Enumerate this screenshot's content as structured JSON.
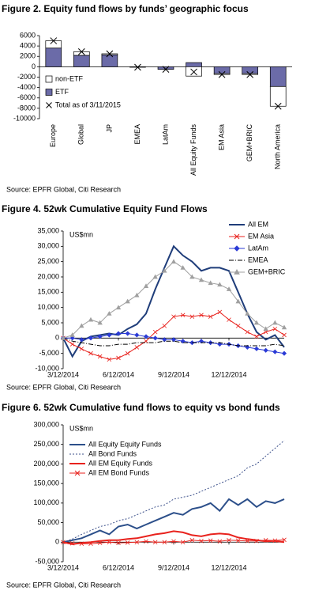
{
  "chart_data": [
    {
      "type": "bar",
      "title": "Figure 2. Equity fund flows by funds’ geographic focus",
      "source": "Source: EPFR Global, Citi Research",
      "categories": [
        "Europe",
        "Global",
        "JP",
        "EMEA",
        "LatAm",
        "All Equity Funds",
        "EM Asia",
        "GEM+BRIC",
        "North America"
      ],
      "series": [
        {
          "name": "non-ETF",
          "color": "#ffffff",
          "values": [
            1400,
            700,
            200,
            0,
            0,
            -1800,
            -200,
            -200,
            -3800
          ]
        },
        {
          "name": "ETF",
          "color": "#6b6ba8",
          "values": [
            3600,
            2200,
            2300,
            -100,
            -500,
            800,
            -1300,
            -1300,
            -3800
          ]
        },
        {
          "name": "Total as of 3/11/2015",
          "color": "#000000",
          "marker": "x",
          "values": [
            5000,
            2900,
            2500,
            -100,
            -500,
            -1000,
            -1500,
            -1500,
            -7600
          ]
        }
      ],
      "ylim": [
        -10000,
        6000
      ],
      "yticks": [
        6000,
        4000,
        2000,
        0,
        -2000,
        -4000,
        -6000,
        -8000,
        -10000
      ],
      "legend": "left"
    },
    {
      "type": "line",
      "title": "Figure 4. 52wk Cumulative Equity Fund Flows",
      "source": "Source: EPFR Global, Citi Research",
      "unit_label": "US$mn",
      "categories": [
        "3/12/2014",
        null,
        null,
        null,
        null,
        null,
        "6/12/2014",
        null,
        null,
        null,
        null,
        null,
        "9/12/2014",
        null,
        null,
        null,
        null,
        null,
        "12/12/2014",
        null,
        null,
        null,
        null,
        null,
        null
      ],
      "series": [
        {
          "name": "All EM",
          "color": "#1f3d7a",
          "width": 2,
          "values": [
            0,
            -6000,
            -1000,
            500,
            1000,
            1500,
            1000,
            3000,
            4500,
            8000,
            16000,
            23000,
            30000,
            27000,
            25000,
            22000,
            23000,
            23000,
            22000,
            15000,
            8000,
            2000,
            -500,
            1000,
            -3000
          ]
        },
        {
          "name": "EM Asia",
          "color": "#e8221d",
          "marker": "x",
          "values": [
            0,
            -2000,
            -3500,
            -5000,
            -6000,
            -7000,
            -6500,
            -5000,
            -3000,
            -1000,
            2000,
            4000,
            7000,
            7500,
            7000,
            7500,
            7000,
            8500,
            6000,
            4000,
            2000,
            500,
            2000,
            3000,
            1000
          ]
        },
        {
          "name": "LatAm",
          "color": "#2b3bd6",
          "marker": "diamond",
          "values": [
            0,
            0,
            -500,
            0,
            500,
            1000,
            1500,
            1500,
            1000,
            500,
            0,
            -500,
            -500,
            -1000,
            -1500,
            -1000,
            -1500,
            -2000,
            -2000,
            -2500,
            -3000,
            -3500,
            -4000,
            -4500,
            -5000
          ]
        },
        {
          "name": "EMEA",
          "color": "#000000",
          "dash": "dashdot",
          "values": [
            0,
            -1000,
            -1500,
            -2000,
            -2500,
            -2500,
            -2000,
            -2000,
            -1500,
            -1500,
            -1500,
            -1000,
            -1000,
            -1500,
            -1500,
            -1500,
            -1500,
            -1500,
            -2000,
            -2500,
            -2500,
            -2500,
            -2500,
            -2000,
            -2500
          ]
        },
        {
          "name": "GEM+BRIC",
          "color": "#a0a0a0",
          "marker": "triangle",
          "values": [
            0,
            1000,
            4000,
            6000,
            5000,
            8000,
            10000,
            12000,
            14000,
            17000,
            20000,
            22000,
            25000,
            23000,
            20000,
            19000,
            18000,
            17500,
            16000,
            12000,
            8000,
            5000,
            3000,
            5000,
            3500
          ]
        }
      ],
      "ylim": [
        -10000,
        35000
      ],
      "yticks": [
        {
          "value": 35000,
          "label": "35,000"
        },
        {
          "value": 30000,
          "label": "30,000"
        },
        {
          "value": 25000,
          "label": "25,000"
        },
        {
          "value": 20000,
          "label": "20,000"
        },
        {
          "value": 15000,
          "label": "15,000"
        },
        {
          "value": 10000,
          "label": "10,000"
        },
        {
          "value": 5000,
          "label": "5,000"
        },
        0,
        {
          "value": -5000,
          "label": "-5,000"
        },
        {
          "value": -10000,
          "label": "-10,000"
        }
      ],
      "legend": "right"
    },
    {
      "type": "line",
      "title": "Figure 6. 52wk Cumulative fund flows to equity vs bond funds",
      "source": "Source: EPFR Global, Citi Research",
      "unit_label": "US$mn",
      "categories": [
        "3/12/2014",
        null,
        null,
        null,
        null,
        null,
        "6/12/2014",
        null,
        null,
        null,
        null,
        null,
        "9/12/2014",
        null,
        null,
        null,
        null,
        null,
        "12/12/2014",
        null,
        null,
        null,
        null,
        null,
        null
      ],
      "series": [
        {
          "name": "All Equity Equity Funds",
          "color": "#2c4f8a",
          "width": 2,
          "values": [
            0,
            5000,
            10000,
            20000,
            30000,
            20000,
            40000,
            45000,
            35000,
            45000,
            55000,
            65000,
            75000,
            70000,
            85000,
            90000,
            100000,
            80000,
            110000,
            95000,
            110000,
            90000,
            105000,
            100000,
            110000
          ]
        },
        {
          "name": "All Bond Funds",
          "color": "#3b4f8a",
          "dash": "dot",
          "values": [
            0,
            8000,
            20000,
            30000,
            40000,
            45000,
            55000,
            60000,
            70000,
            80000,
            90000,
            95000,
            110000,
            115000,
            120000,
            130000,
            140000,
            150000,
            160000,
            170000,
            190000,
            200000,
            220000,
            240000,
            260000
          ]
        },
        {
          "name": "All EM Equity Funds",
          "color": "#e8221d",
          "width": 2,
          "values": [
            0,
            -5000,
            -2000,
            0,
            3000,
            5000,
            5000,
            8000,
            10000,
            15000,
            20000,
            23000,
            28000,
            25000,
            18000,
            15000,
            20000,
            22000,
            20000,
            12000,
            8000,
            5000,
            2000,
            3000,
            0
          ]
        },
        {
          "name": "All EM Bond Funds",
          "color": "#e8221d",
          "marker": "x",
          "values": [
            0,
            -3000,
            -4000,
            -4000,
            -2000,
            0,
            -2000,
            -1000,
            0,
            2000,
            0,
            0,
            2000,
            0,
            5000,
            3000,
            4000,
            2000,
            5000,
            4000,
            3000,
            3000,
            5000,
            4000,
            6000
          ]
        }
      ],
      "ylim": [
        -50000,
        300000
      ],
      "yticks": [
        {
          "value": 300000,
          "label": "300,000"
        },
        {
          "value": 250000,
          "label": "250,000"
        },
        {
          "value": 200000,
          "label": "200,000"
        },
        {
          "value": 150000,
          "label": "150,000"
        },
        {
          "value": 100000,
          "label": "100,000"
        },
        {
          "value": 50000,
          "label": "50,000"
        },
        0,
        {
          "value": -50000,
          "label": "-50,000"
        }
      ],
      "legend": "left"
    }
  ]
}
